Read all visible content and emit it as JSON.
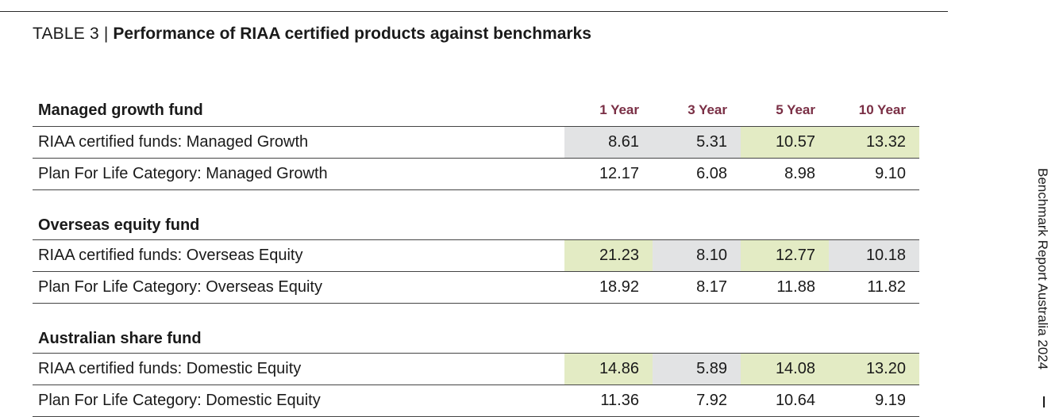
{
  "title": {
    "prefix": "TABLE 3",
    "separator": "|",
    "text": "Performance of RIAA certified products against benchmarks"
  },
  "columns": [
    "1 Year",
    "3 Year",
    "5 Year",
    "10 Year"
  ],
  "sections": [
    {
      "title": "Managed growth fund",
      "rows": [
        {
          "label": "RIAA certified funds: Managed Growth",
          "values": [
            "8.61",
            "5.31",
            "10.57",
            "13.32"
          ],
          "highlight": [
            "grey",
            "grey",
            "green",
            "green"
          ]
        },
        {
          "label": "Plan For Life Category: Managed Growth",
          "values": [
            "12.17",
            "6.08",
            "8.98",
            "9.10"
          ],
          "highlight": [
            "none",
            "none",
            "none",
            "none"
          ]
        }
      ]
    },
    {
      "title": "Overseas equity fund",
      "rows": [
        {
          "label": "RIAA certified funds: Overseas Equity",
          "values": [
            "21.23",
            "8.10",
            "12.77",
            "10.18"
          ],
          "highlight": [
            "green",
            "grey",
            "green",
            "grey"
          ]
        },
        {
          "label": "Plan For Life Category: Overseas Equity",
          "values": [
            "18.92",
            "8.17",
            "11.88",
            "11.82"
          ],
          "highlight": [
            "none",
            "none",
            "none",
            "none"
          ]
        }
      ]
    },
    {
      "title": "Australian share fund",
      "rows": [
        {
          "label": "RIAA certified funds: Domestic Equity",
          "values": [
            "14.86",
            "5.89",
            "14.08",
            "13.20"
          ],
          "highlight": [
            "green",
            "grey",
            "green",
            "green"
          ]
        },
        {
          "label": "Plan For Life Category: Domestic Equity",
          "values": [
            "11.36",
            "7.92",
            "10.64",
            "9.19"
          ],
          "highlight": [
            "none",
            "none",
            "none",
            "none"
          ]
        }
      ]
    }
  ],
  "side_label": "Benchmark Report Australia 2024",
  "colors": {
    "header_accent": "#7a2f45",
    "outperform_green": "#e3ebc4",
    "underperform_grey": "#e2e3e4"
  }
}
